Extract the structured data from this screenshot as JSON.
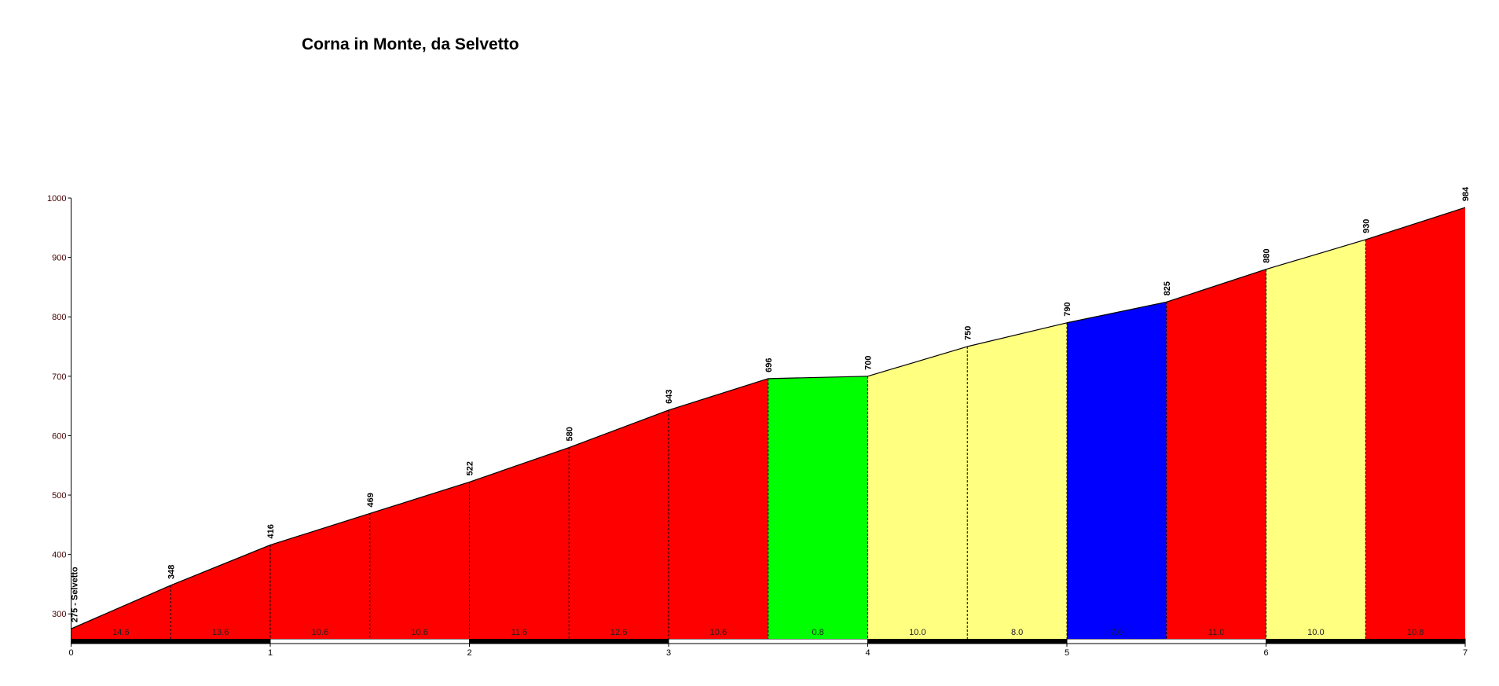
{
  "chart_data": {
    "type": "area",
    "title": "Corna in Monte, da Selvetto",
    "x": [
      0,
      0.5,
      1,
      1.5,
      2,
      2.5,
      3,
      3.5,
      4,
      4.5,
      5,
      5.5,
      6,
      6.5,
      7
    ],
    "xlim": [
      0,
      7
    ],
    "xticks": [
      0,
      1,
      2,
      3,
      4,
      5,
      6,
      7
    ],
    "ylim": [
      258,
      1000
    ],
    "yticks": [
      300,
      400,
      500,
      600,
      700,
      800,
      900,
      1000
    ],
    "series": [
      {
        "values": [
          275,
          348,
          416,
          469,
          522,
          580,
          643,
          696,
          700,
          750,
          790,
          825,
          880,
          930,
          984
        ],
        "value_labels": [
          "275 - Selvetto",
          "348",
          "416",
          "469",
          "522",
          "580",
          "643",
          "696",
          "700",
          "750",
          "790",
          "825",
          "880",
          "930",
          "984"
        ]
      }
    ],
    "gradients": {
      "values": [
        14.6,
        13.6,
        10.6,
        10.6,
        11.6,
        12.6,
        10.6,
        0.8,
        10.0,
        8.0,
        7.0,
        11.0,
        10.0,
        10.8
      ],
      "value_labels": [
        "14.6",
        "13.6",
        "10.6",
        "10.6",
        "11.6",
        "12.6",
        "10.6",
        "0.8",
        "10.0",
        "8.0",
        "7.0",
        "11.0",
        "10.0",
        "10.8"
      ],
      "colors": [
        "#ff0000",
        "#ff0000",
        "#ff0000",
        "#ff0000",
        "#ff0000",
        "#ff0000",
        "#ff0000",
        "#00ff00",
        "#ffff80",
        "#ffff80",
        "#0000ff",
        "#ff0000",
        "#ffff80",
        "#ff0000"
      ]
    }
  }
}
